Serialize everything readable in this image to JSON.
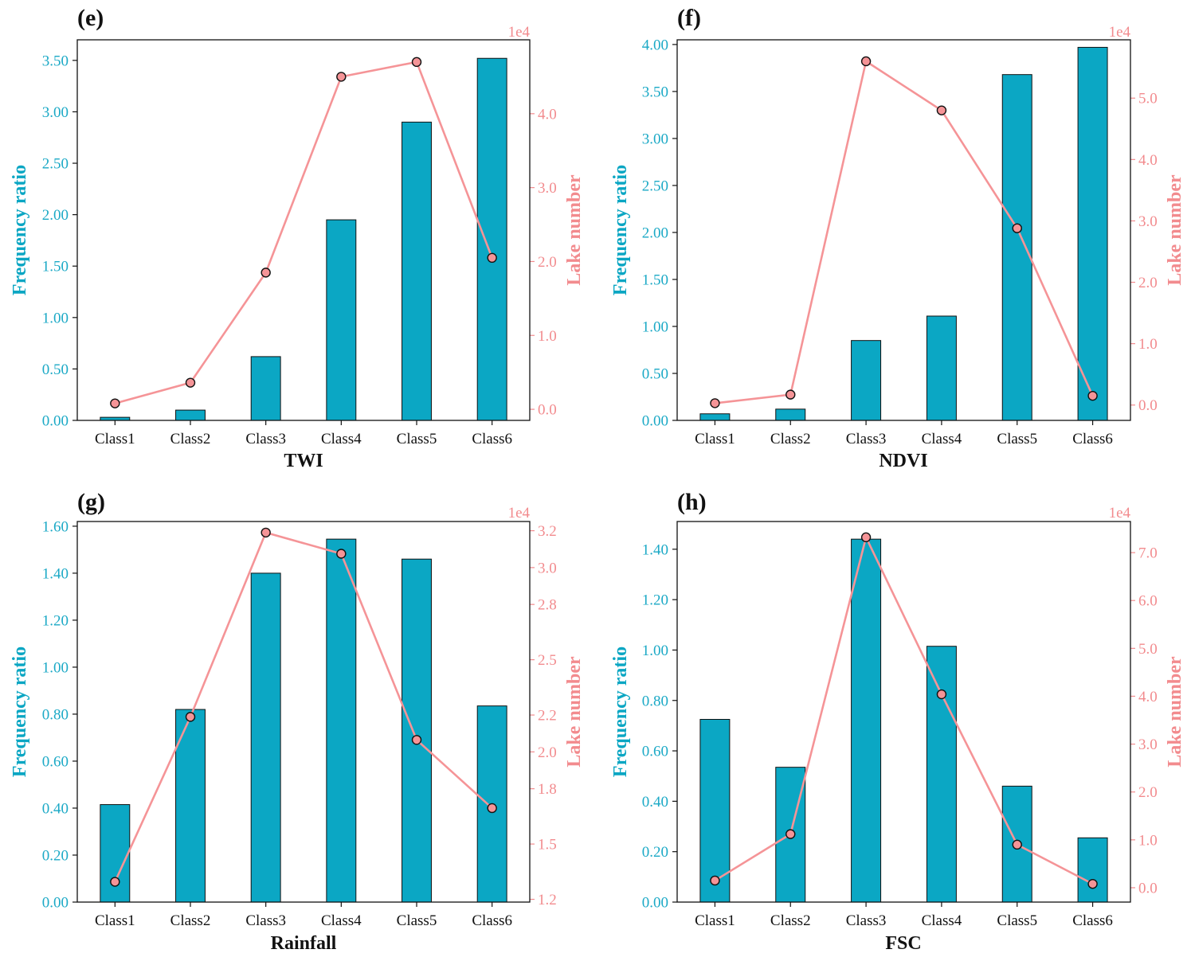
{
  "colors": {
    "bar": "#0BA7C4",
    "bar_edge": "#111111",
    "line": "#F59497",
    "marker": "#F59497",
    "left_axis_text": "#1BA9C6",
    "right_axis_text": "#F28B8E"
  },
  "chart_data": [
    {
      "panel": "(e)",
      "type": "bar",
      "categories": [
        "Class1",
        "Class2",
        "Class3",
        "Class4",
        "Class5",
        "Class6"
      ],
      "series": [
        {
          "name": "Frequency ratio",
          "axis": "left",
          "type": "bar",
          "values": [
            0.03,
            0.1,
            0.62,
            1.95,
            2.9,
            3.52
          ]
        },
        {
          "name": "Lake number",
          "axis": "right",
          "type": "line",
          "values": [
            0.08,
            0.36,
            1.85,
            4.5,
            4.7,
            2.05
          ]
        }
      ],
      "xlabel": "TWI",
      "ylabel": "Frequency ratio",
      "y2label": "Lake number",
      "y2_exponent": "1e4",
      "ylim": [
        0,
        3.7
      ],
      "y2lim": [
        -0.15,
        5.0
      ],
      "yticks": [
        0,
        0.5,
        1.0,
        1.5,
        2.0,
        2.5,
        3.0,
        3.5
      ],
      "ytick_labels": [
        "0.00",
        "0.50",
        "1.00",
        "1.50",
        "2.00",
        "2.50",
        "3.00",
        "3.50"
      ],
      "y2ticks": [
        0,
        1,
        2,
        3,
        4
      ],
      "y2tick_labels": [
        "0.0",
        "1.0",
        "2.0",
        "3.0",
        "4.0"
      ]
    },
    {
      "panel": "(f)",
      "type": "bar",
      "categories": [
        "Class1",
        "Class2",
        "Class3",
        "Class4",
        "Class5",
        "Class6"
      ],
      "series": [
        {
          "name": "Frequency ratio",
          "axis": "left",
          "type": "bar",
          "values": [
            0.07,
            0.12,
            0.85,
            1.11,
            3.68,
            3.97
          ]
        },
        {
          "name": "Lake number",
          "axis": "right",
          "type": "line",
          "values": [
            0.03,
            0.17,
            5.6,
            4.8,
            2.88,
            0.15
          ]
        }
      ],
      "xlabel": "NDVI",
      "ylabel": "Frequency ratio",
      "y2label": "Lake number",
      "y2_exponent": "1e4",
      "ylim": [
        0,
        4.05
      ],
      "y2lim": [
        -0.25,
        5.95
      ],
      "yticks": [
        0,
        0.5,
        1.0,
        1.5,
        2.0,
        2.5,
        3.0,
        3.5,
        4.0
      ],
      "ytick_labels": [
        "0.00",
        "0.50",
        "1.00",
        "1.50",
        "2.00",
        "2.50",
        "3.00",
        "3.50",
        "4.00"
      ],
      "y2ticks": [
        0,
        1,
        2,
        3,
        4,
        5
      ],
      "y2tick_labels": [
        "0.0",
        "1.0",
        "2.0",
        "3.0",
        "4.0",
        "5.0"
      ]
    },
    {
      "panel": "(g)",
      "type": "bar",
      "categories": [
        "Class1",
        "Class2",
        "Class3",
        "Class4",
        "Class5",
        "Class6"
      ],
      "series": [
        {
          "name": "Frequency ratio",
          "axis": "left",
          "type": "bar",
          "values": [
            0.415,
            0.82,
            1.4,
            1.545,
            1.46,
            0.835
          ]
        },
        {
          "name": "Lake number",
          "axis": "right",
          "type": "line",
          "values": [
            1.295,
            2.19,
            3.19,
            3.075,
            2.065,
            1.695
          ]
        }
      ],
      "xlabel": "Rainfall",
      "ylabel": "Frequency ratio",
      "y2label": "Lake number",
      "y2_exponent": "1e4",
      "ylim": [
        0,
        1.62
      ],
      "y2lim": [
        1.185,
        3.25
      ],
      "yticks": [
        0,
        0.2,
        0.4,
        0.6,
        0.8,
        1.0,
        1.2,
        1.4,
        1.6
      ],
      "ytick_labels": [
        "0.00",
        "0.20",
        "0.40",
        "0.60",
        "0.80",
        "1.00",
        "1.20",
        "1.40",
        "1.60"
      ],
      "y2ticks": [
        1.2,
        1.5,
        1.8,
        2.0,
        2.2,
        2.5,
        2.8,
        3.0,
        3.2
      ],
      "y2tick_labels": [
        "1.2",
        "1.5",
        "1.8",
        "2.0",
        "2.2",
        "2.5",
        "2.8",
        "3.0",
        "3.2"
      ]
    },
    {
      "panel": "(h)",
      "type": "bar",
      "categories": [
        "Class1",
        "Class2",
        "Class3",
        "Class4",
        "Class5",
        "Class6"
      ],
      "series": [
        {
          "name": "Frequency ratio",
          "axis": "left",
          "type": "bar",
          "values": [
            0.725,
            0.535,
            1.44,
            1.015,
            0.46,
            0.255
          ]
        },
        {
          "name": "Lake number",
          "axis": "right",
          "type": "line",
          "values": [
            0.15,
            1.12,
            7.32,
            4.04,
            0.9,
            0.08
          ]
        }
      ],
      "xlabel": "FSC",
      "ylabel": "Frequency ratio",
      "y2label": "Lake number",
      "y2_exponent": "1e4",
      "ylim": [
        0,
        1.51
      ],
      "y2lim": [
        -0.3,
        7.65
      ],
      "yticks": [
        0,
        0.2,
        0.4,
        0.6,
        0.8,
        1.0,
        1.2,
        1.4
      ],
      "ytick_labels": [
        "0.00",
        "0.20",
        "0.40",
        "0.60",
        "0.80",
        "1.00",
        "1.20",
        "1.40"
      ],
      "y2ticks": [
        0,
        1,
        2,
        3,
        4,
        5,
        6,
        7
      ],
      "y2tick_labels": [
        "0.0",
        "1.0",
        "2.0",
        "3.0",
        "4.0",
        "5.0",
        "6.0",
        "7.0"
      ]
    }
  ]
}
